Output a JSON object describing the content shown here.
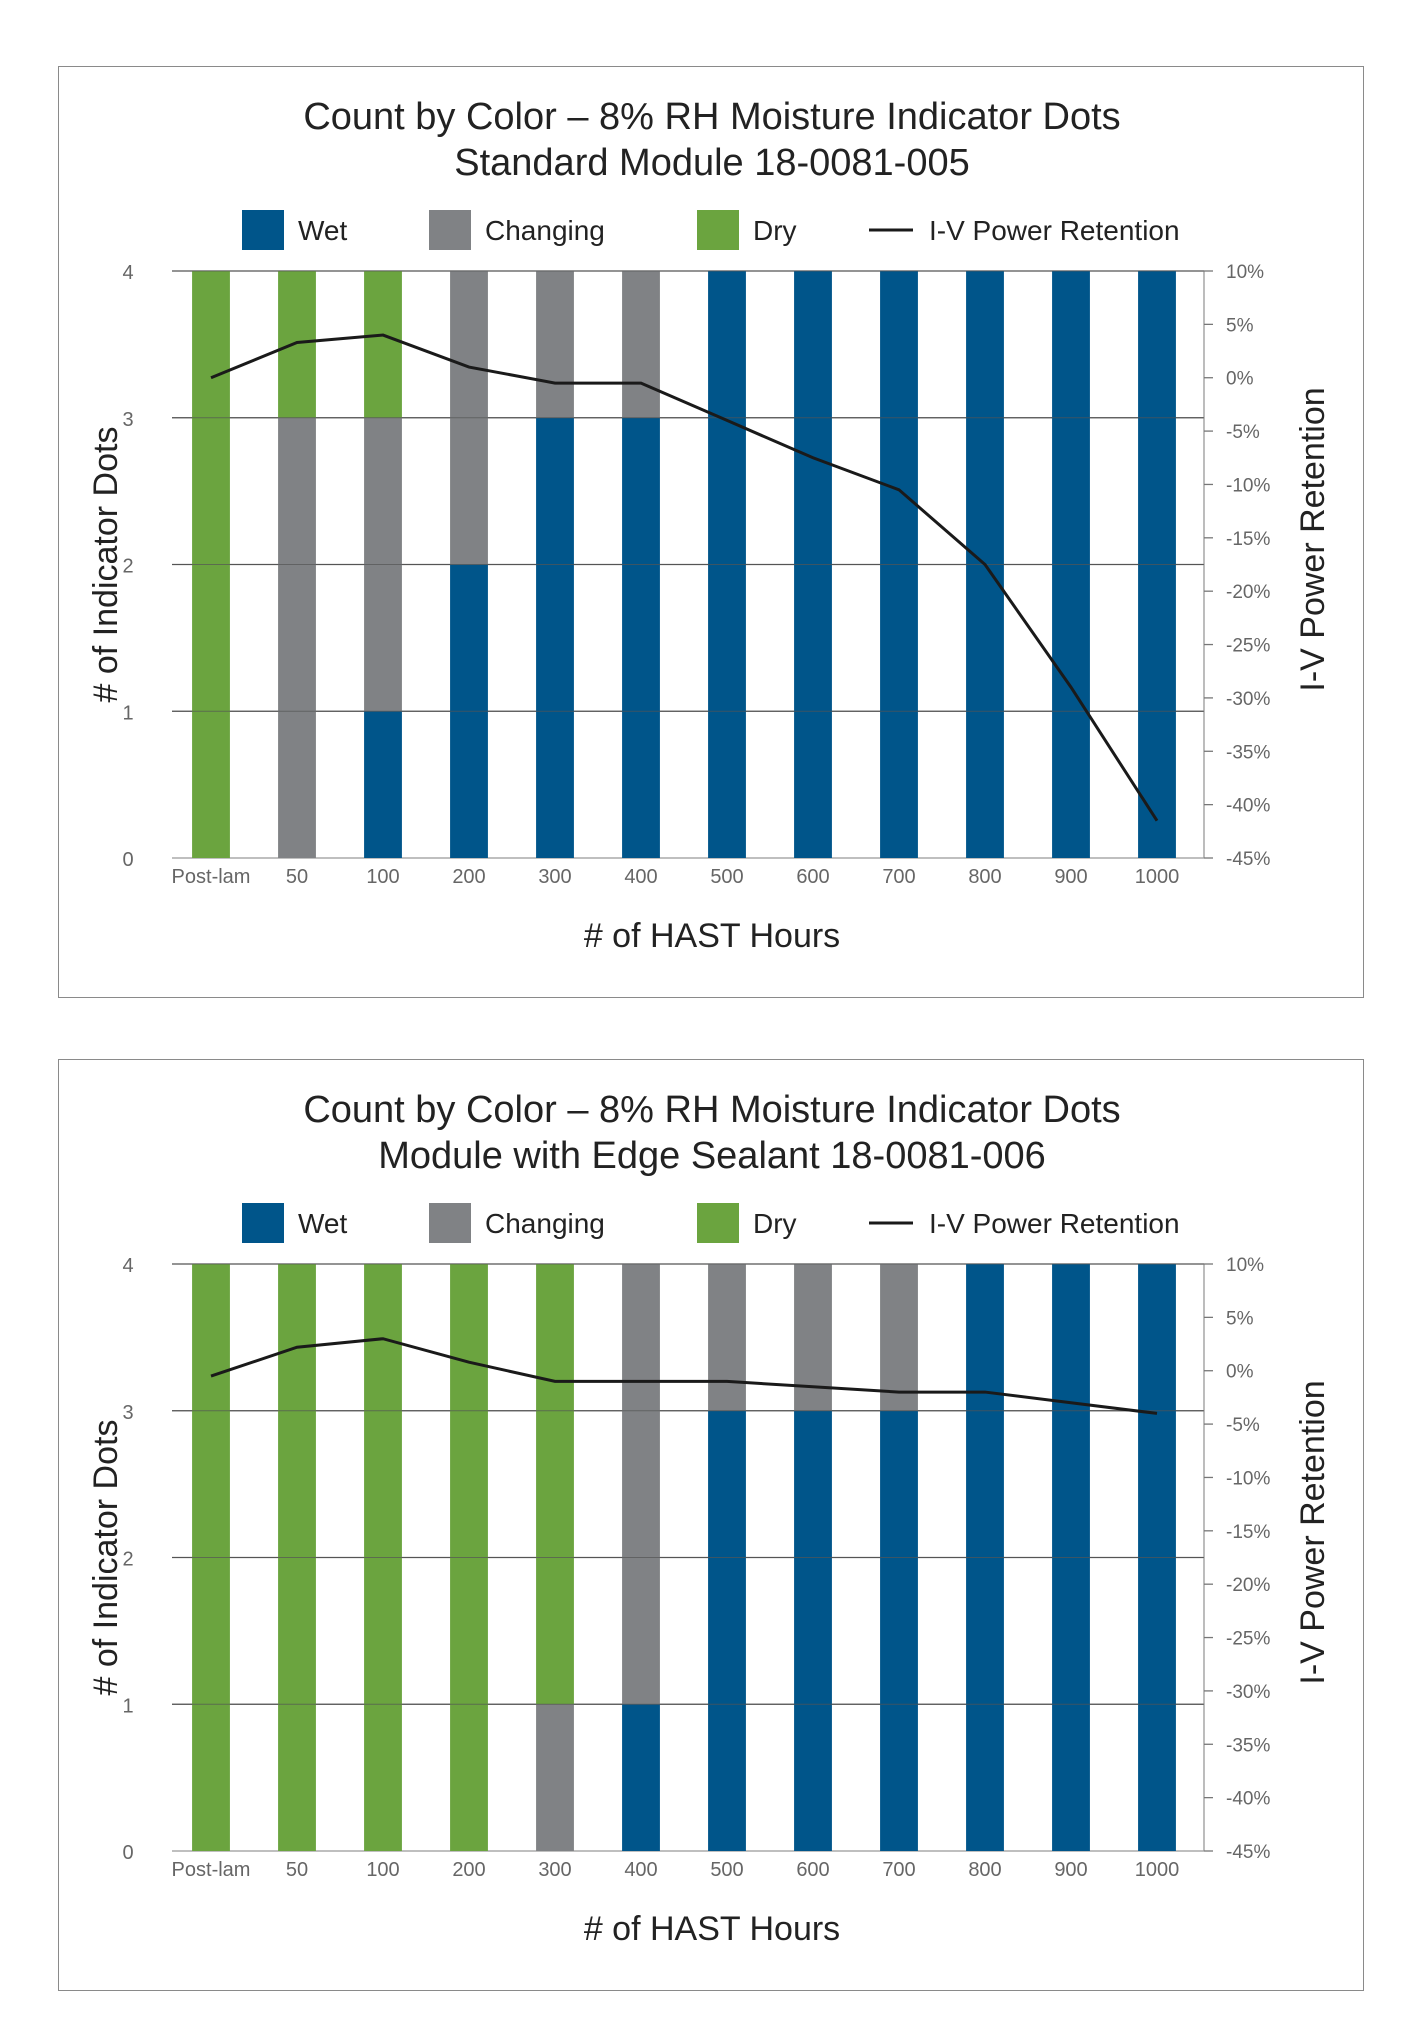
{
  "colors": {
    "wet": "#00558a",
    "changing": "#808285",
    "dry": "#6ba43f",
    "line": "#1a1a1a",
    "grid": "#555555",
    "tick_text": "#666666"
  },
  "chart_data": [
    {
      "type": "bar",
      "stacked": true,
      "title": "Count by Color – 8% RH Moisture Indicator Dots",
      "subtitle": "Standard Module 18-0081-005",
      "xlabel": "# of HAST Hours",
      "ylabel": "# of Indicator Dots",
      "y2label": "I-V Power Retention",
      "ylim": [
        0,
        4
      ],
      "yticks": [
        "0",
        "1",
        "2",
        "3",
        "4"
      ],
      "y2lim": [
        -45,
        10
      ],
      "y2ticks": [
        "10%",
        "5%",
        "0%",
        "-5%",
        "-10%",
        "-15%",
        "-20%",
        "-25%",
        "-30%",
        "-35%",
        "-40%",
        "-45%"
      ],
      "legend": [
        "Wet",
        "Changing",
        "Dry",
        "I-V Power Retention"
      ],
      "legend_position": "top",
      "grid": true,
      "categories": [
        "Post-lam",
        "50",
        "100",
        "200",
        "300",
        "400",
        "500",
        "600",
        "700",
        "800",
        "900",
        "1000"
      ],
      "series": [
        {
          "name": "Wet",
          "values": [
            0,
            0,
            1,
            2,
            3,
            3,
            4,
            4,
            4,
            4,
            4,
            4
          ]
        },
        {
          "name": "Changing",
          "values": [
            0,
            3,
            2,
            2,
            1,
            1,
            0,
            0,
            0,
            0,
            0,
            0
          ]
        },
        {
          "name": "Dry",
          "values": [
            4,
            1,
            1,
            0,
            0,
            0,
            0,
            0,
            0,
            0,
            0,
            0
          ]
        }
      ],
      "line": {
        "name": "I-V Power Retention",
        "axis": "right",
        "values": [
          0,
          3.3,
          4,
          1,
          -0.5,
          -0.5,
          -4,
          -7.5,
          -10.5,
          -17.5,
          -29,
          -41.5
        ]
      }
    },
    {
      "type": "bar",
      "stacked": true,
      "title": "Count by Color – 8% RH Moisture Indicator Dots",
      "subtitle": "Module with Edge Sealant 18-0081-006",
      "xlabel": "# of HAST Hours",
      "ylabel": "# of Indicator Dots",
      "y2label": "I-V Power Retention",
      "ylim": [
        0,
        4
      ],
      "yticks": [
        "0",
        "1",
        "2",
        "3",
        "4"
      ],
      "y2lim": [
        -45,
        10
      ],
      "y2ticks": [
        "10%",
        "5%",
        "0%",
        "-5%",
        "-10%",
        "-15%",
        "-20%",
        "-25%",
        "-30%",
        "-35%",
        "-40%",
        "-45%"
      ],
      "legend": [
        "Wet",
        "Changing",
        "Dry",
        "I-V Power Retention"
      ],
      "legend_position": "top",
      "grid": true,
      "categories": [
        "Post-lam",
        "50",
        "100",
        "200",
        "300",
        "400",
        "500",
        "600",
        "700",
        "800",
        "900",
        "1000"
      ],
      "series": [
        {
          "name": "Wet",
          "values": [
            0,
            0,
            0,
            0,
            0,
            1,
            3,
            3,
            3,
            4,
            4,
            4
          ]
        },
        {
          "name": "Changing",
          "values": [
            0,
            0,
            0,
            0,
            1,
            3,
            1,
            1,
            1,
            0,
            0,
            0
          ]
        },
        {
          "name": "Dry",
          "values": [
            4,
            4,
            4,
            4,
            3,
            0,
            0,
            0,
            0,
            0,
            0,
            0
          ]
        }
      ],
      "line": {
        "name": "I-V Power Retention",
        "axis": "right",
        "values": [
          -0.5,
          2.2,
          3,
          0.8,
          -1,
          -1,
          -1,
          -1.5,
          -2,
          -2,
          -3,
          -4
        ]
      }
    }
  ]
}
